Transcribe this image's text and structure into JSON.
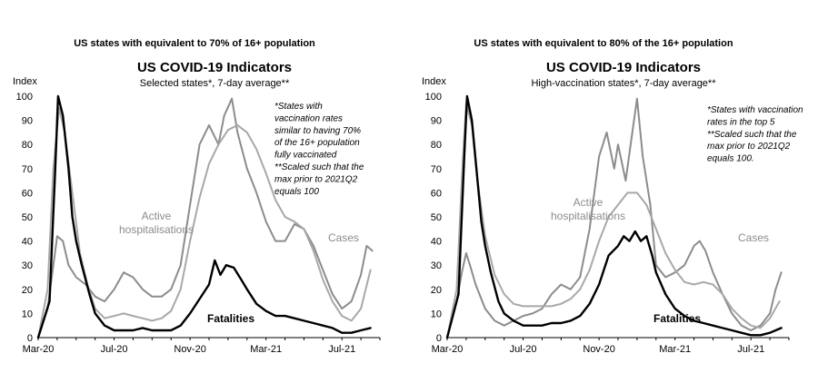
{
  "chart_data": [
    {
      "type": "line",
      "supertitle": "US states with equivalent to 70% of 16+ population",
      "title": "US COVID-19 Indicators",
      "subtitle": "Selected states*, 7-day average**",
      "ylabel": "Index",
      "ylim": [
        0,
        100
      ],
      "yticks": [
        0,
        10,
        20,
        30,
        40,
        50,
        60,
        70,
        80,
        90,
        100
      ],
      "xlim": [
        0,
        18
      ],
      "xticks": [
        {
          "x": 0,
          "label": "Mar-20"
        },
        {
          "x": 4,
          "label": "Jul-20"
        },
        {
          "x": 8,
          "label": "Nov-20"
        },
        {
          "x": 12,
          "label": "Mar-21"
        },
        {
          "x": 16,
          "label": "Jul-21"
        }
      ],
      "note_lines": [
        "*States with",
        "vaccination rates",
        "similar to having 70%",
        "of the 16+ population",
        "fully vaccinated",
        "**Scaled such that the",
        "max prior to 2021Q2",
        "equals 100"
      ],
      "annotations": {
        "hospitalisations": [
          "Active",
          "hospitalisations"
        ],
        "cases": "Cases",
        "fatalities": "Fatalities"
      },
      "series": [
        {
          "name": "Cases",
          "color": "#8c8c8c",
          "width": 2,
          "x": [
            0,
            0.5,
            0.8,
            1.0,
            1.3,
            1.6,
            2.0,
            2.5,
            3.0,
            3.5,
            4.0,
            4.5,
            5.0,
            5.5,
            6.0,
            6.5,
            7.0,
            7.5,
            8.0,
            8.5,
            9.0,
            9.5,
            9.8,
            10.2,
            10.5,
            11.0,
            11.5,
            12.0,
            12.5,
            13.0,
            13.5,
            14.0,
            14.5,
            15.0,
            15.5,
            16.0,
            16.5,
            17.0,
            17.3,
            17.6
          ],
          "y": [
            0,
            12,
            30,
            42,
            40,
            30,
            25,
            22,
            17,
            15,
            20,
            27,
            25,
            20,
            17,
            17,
            20,
            30,
            55,
            80,
            88,
            80,
            92,
            99,
            85,
            70,
            60,
            48,
            40,
            40,
            47,
            45,
            38,
            28,
            18,
            12,
            15,
            26,
            38,
            36
          ]
        },
        {
          "name": "Active hospitalisations",
          "color": "#a8a8a8",
          "width": 2,
          "x": [
            0,
            0.5,
            0.8,
            1.1,
            1.4,
            1.8,
            2.2,
            2.6,
            3.0,
            3.5,
            4.0,
            4.5,
            5.0,
            5.5,
            6.0,
            6.5,
            7.0,
            7.5,
            8.0,
            8.5,
            9.0,
            9.5,
            10.0,
            10.5,
            11.0,
            11.5,
            12.0,
            12.5,
            13.0,
            13.5,
            14.0,
            14.5,
            15.0,
            15.5,
            16.0,
            16.5,
            17.0,
            17.5
          ],
          "y": [
            0,
            20,
            70,
            95,
            85,
            60,
            35,
            22,
            12,
            8,
            9,
            10,
            9,
            8,
            7,
            8,
            11,
            20,
            40,
            58,
            72,
            80,
            86,
            88,
            85,
            78,
            68,
            57,
            50,
            48,
            45,
            36,
            24,
            15,
            9,
            7,
            12,
            28
          ]
        },
        {
          "name": "Fatalities",
          "color": "#000000",
          "width": 2.4,
          "x": [
            0,
            0.6,
            0.9,
            1.05,
            1.3,
            1.6,
            1.8,
            2.0,
            2.3,
            2.7,
            3.0,
            3.5,
            4.0,
            4.5,
            5.0,
            5.5,
            6.0,
            6.5,
            7.0,
            7.5,
            8.0,
            8.5,
            9.0,
            9.3,
            9.6,
            9.9,
            10.3,
            10.7,
            11.0,
            11.5,
            12.0,
            12.5,
            13.0,
            13.5,
            14.0,
            14.5,
            15.0,
            15.5,
            16.0,
            16.5,
            17.0,
            17.5
          ],
          "y": [
            0,
            15,
            70,
            100,
            92,
            70,
            50,
            40,
            30,
            18,
            10,
            5,
            3,
            3,
            3,
            4,
            3,
            3,
            3,
            5,
            10,
            16,
            22,
            32,
            26,
            30,
            29,
            24,
            20,
            14,
            11,
            9,
            9,
            8,
            7,
            6,
            5,
            4,
            2,
            2,
            3,
            4
          ]
        }
      ]
    },
    {
      "type": "line",
      "supertitle": "US states with equivalent to 80% of the 16+ population",
      "title": "US COVID-19 Indicators",
      "subtitle": "High-vaccination states*, 7-day average**",
      "ylabel": "Index",
      "ylim": [
        0,
        100
      ],
      "yticks": [
        0,
        10,
        20,
        30,
        40,
        50,
        60,
        70,
        80,
        90,
        100
      ],
      "xlim": [
        0,
        18
      ],
      "xticks": [
        {
          "x": 0,
          "label": "Mar-20"
        },
        {
          "x": 4,
          "label": "Jul-20"
        },
        {
          "x": 8,
          "label": "Nov-20"
        },
        {
          "x": 12,
          "label": "Mar-21"
        },
        {
          "x": 16,
          "label": "Jul-21"
        }
      ],
      "note_lines": [
        "*States with vaccination",
        "rates in the top 5",
        "**Scaled such that the",
        "max prior to 2021Q2",
        "equals 100."
      ],
      "annotations": {
        "hospitalisations": [
          "Active",
          "hospitalisations"
        ],
        "cases": "Cases",
        "fatalities": "Fatalities"
      },
      "series": [
        {
          "name": "Cases",
          "color": "#8c8c8c",
          "width": 2,
          "x": [
            0,
            0.5,
            0.8,
            1.0,
            1.2,
            1.5,
            2.0,
            2.5,
            3.0,
            3.5,
            4.0,
            4.5,
            5.0,
            5.5,
            6.0,
            6.5,
            7.0,
            7.5,
            8.0,
            8.4,
            8.8,
            9.0,
            9.4,
            9.7,
            10.0,
            10.3,
            10.7,
            11.0,
            11.5,
            12.0,
            12.5,
            13.0,
            13.3,
            13.6,
            14.0,
            14.5,
            15.0,
            15.5,
            16.0,
            16.5,
            17.0,
            17.3,
            17.6
          ],
          "y": [
            0,
            15,
            28,
            35,
            30,
            22,
            12,
            7,
            5,
            7,
            9,
            10,
            12,
            18,
            22,
            20,
            25,
            45,
            75,
            85,
            70,
            80,
            65,
            82,
            99,
            75,
            55,
            30,
            25,
            27,
            30,
            38,
            40,
            36,
            27,
            18,
            10,
            5,
            3,
            5,
            10,
            20,
            27
          ]
        },
        {
          "name": "Active hospitalisations",
          "color": "#a8a8a8",
          "width": 2,
          "x": [
            0,
            0.5,
            0.8,
            1.0,
            1.3,
            1.6,
            2.0,
            2.5,
            3.0,
            3.5,
            4.0,
            4.5,
            5.0,
            5.5,
            6.0,
            6.5,
            7.0,
            7.5,
            8.0,
            8.5,
            9.0,
            9.5,
            10.0,
            10.5,
            11.0,
            11.5,
            12.0,
            12.5,
            13.0,
            13.5,
            14.0,
            14.5,
            15.0,
            15.5,
            16.0,
            16.5,
            17.0,
            17.5
          ],
          "y": [
            0,
            20,
            70,
            97,
            88,
            65,
            42,
            26,
            18,
            14,
            13,
            13,
            13,
            13,
            14,
            16,
            20,
            28,
            40,
            50,
            55,
            60,
            60,
            55,
            45,
            35,
            28,
            23,
            22,
            23,
            22,
            18,
            12,
            8,
            5,
            4,
            8,
            15
          ]
        },
        {
          "name": "Fatalities",
          "color": "#000000",
          "width": 2.4,
          "x": [
            0,
            0.6,
            0.9,
            1.05,
            1.3,
            1.6,
            1.8,
            2.0,
            2.3,
            2.7,
            3.0,
            3.5,
            4.0,
            4.5,
            5.0,
            5.5,
            6.0,
            6.5,
            7.0,
            7.5,
            8.0,
            8.5,
            9.0,
            9.3,
            9.6,
            9.9,
            10.2,
            10.5,
            10.8,
            11.0,
            11.5,
            12.0,
            12.5,
            13.0,
            13.5,
            14.0,
            14.5,
            15.0,
            15.5,
            16.0,
            16.5,
            17.0,
            17.3,
            17.6
          ],
          "y": [
            0,
            18,
            75,
            100,
            90,
            65,
            48,
            38,
            27,
            15,
            10,
            7,
            5,
            5,
            5,
            6,
            6,
            7,
            9,
            14,
            22,
            34,
            38,
            42,
            40,
            44,
            40,
            42,
            34,
            27,
            18,
            12,
            9,
            7,
            6,
            5,
            4,
            3,
            2,
            1,
            1,
            2,
            3,
            4
          ]
        }
      ]
    }
  ]
}
